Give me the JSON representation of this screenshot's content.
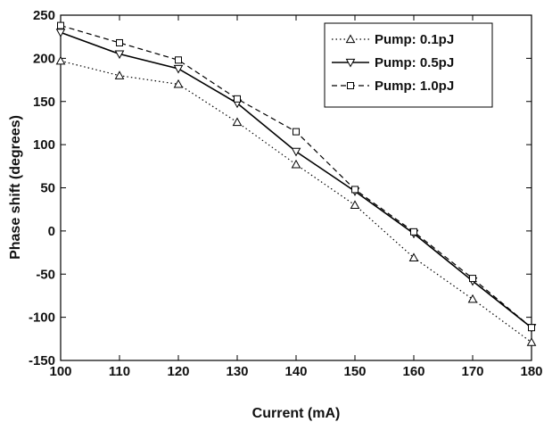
{
  "chart_data": {
    "type": "line",
    "title": "",
    "xlabel": "Current (mA)",
    "ylabel": "Phase shift (degrees)",
    "xlim": [
      100,
      180
    ],
    "ylim": [
      -150,
      250
    ],
    "x_ticks": [
      100,
      110,
      120,
      130,
      140,
      150,
      160,
      170,
      180
    ],
    "y_ticks": [
      250,
      200,
      150,
      100,
      50,
      0,
      -50,
      -100,
      -150
    ],
    "grid": false,
    "legend_position": "top-right",
    "x": [
      100,
      110,
      120,
      130,
      140,
      150,
      160,
      170,
      180
    ],
    "series": [
      {
        "name": "Pump: 0.1pJ",
        "marker": "triangle-up",
        "line_style": "dotted",
        "values": [
          197,
          180,
          170,
          126,
          77,
          30,
          -31,
          -79,
          -129
        ]
      },
      {
        "name": "Pump: 0.5pJ",
        "marker": "triangle-down",
        "line_style": "solid",
        "values": [
          230,
          205,
          188,
          148,
          92,
          46,
          -3,
          -58,
          -112
        ]
      },
      {
        "name": "Pump: 1.0pJ",
        "marker": "square",
        "line_style": "dashed",
        "values": [
          238,
          218,
          198,
          153,
          115,
          48,
          -1,
          -55,
          -112
        ]
      }
    ]
  }
}
